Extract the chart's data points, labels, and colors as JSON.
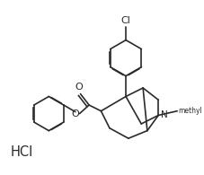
{
  "bg_color": "#ffffff",
  "line_color": "#2a2a2a",
  "line_width": 1.2,
  "font_size": 7.0,
  "hcl_text": "HCl",
  "cl_text": "Cl",
  "n_text": "N",
  "o_text": "O",
  "methyl_text": "methyl",
  "figsize": [
    2.28,
    1.95
  ],
  "dpi": 100
}
